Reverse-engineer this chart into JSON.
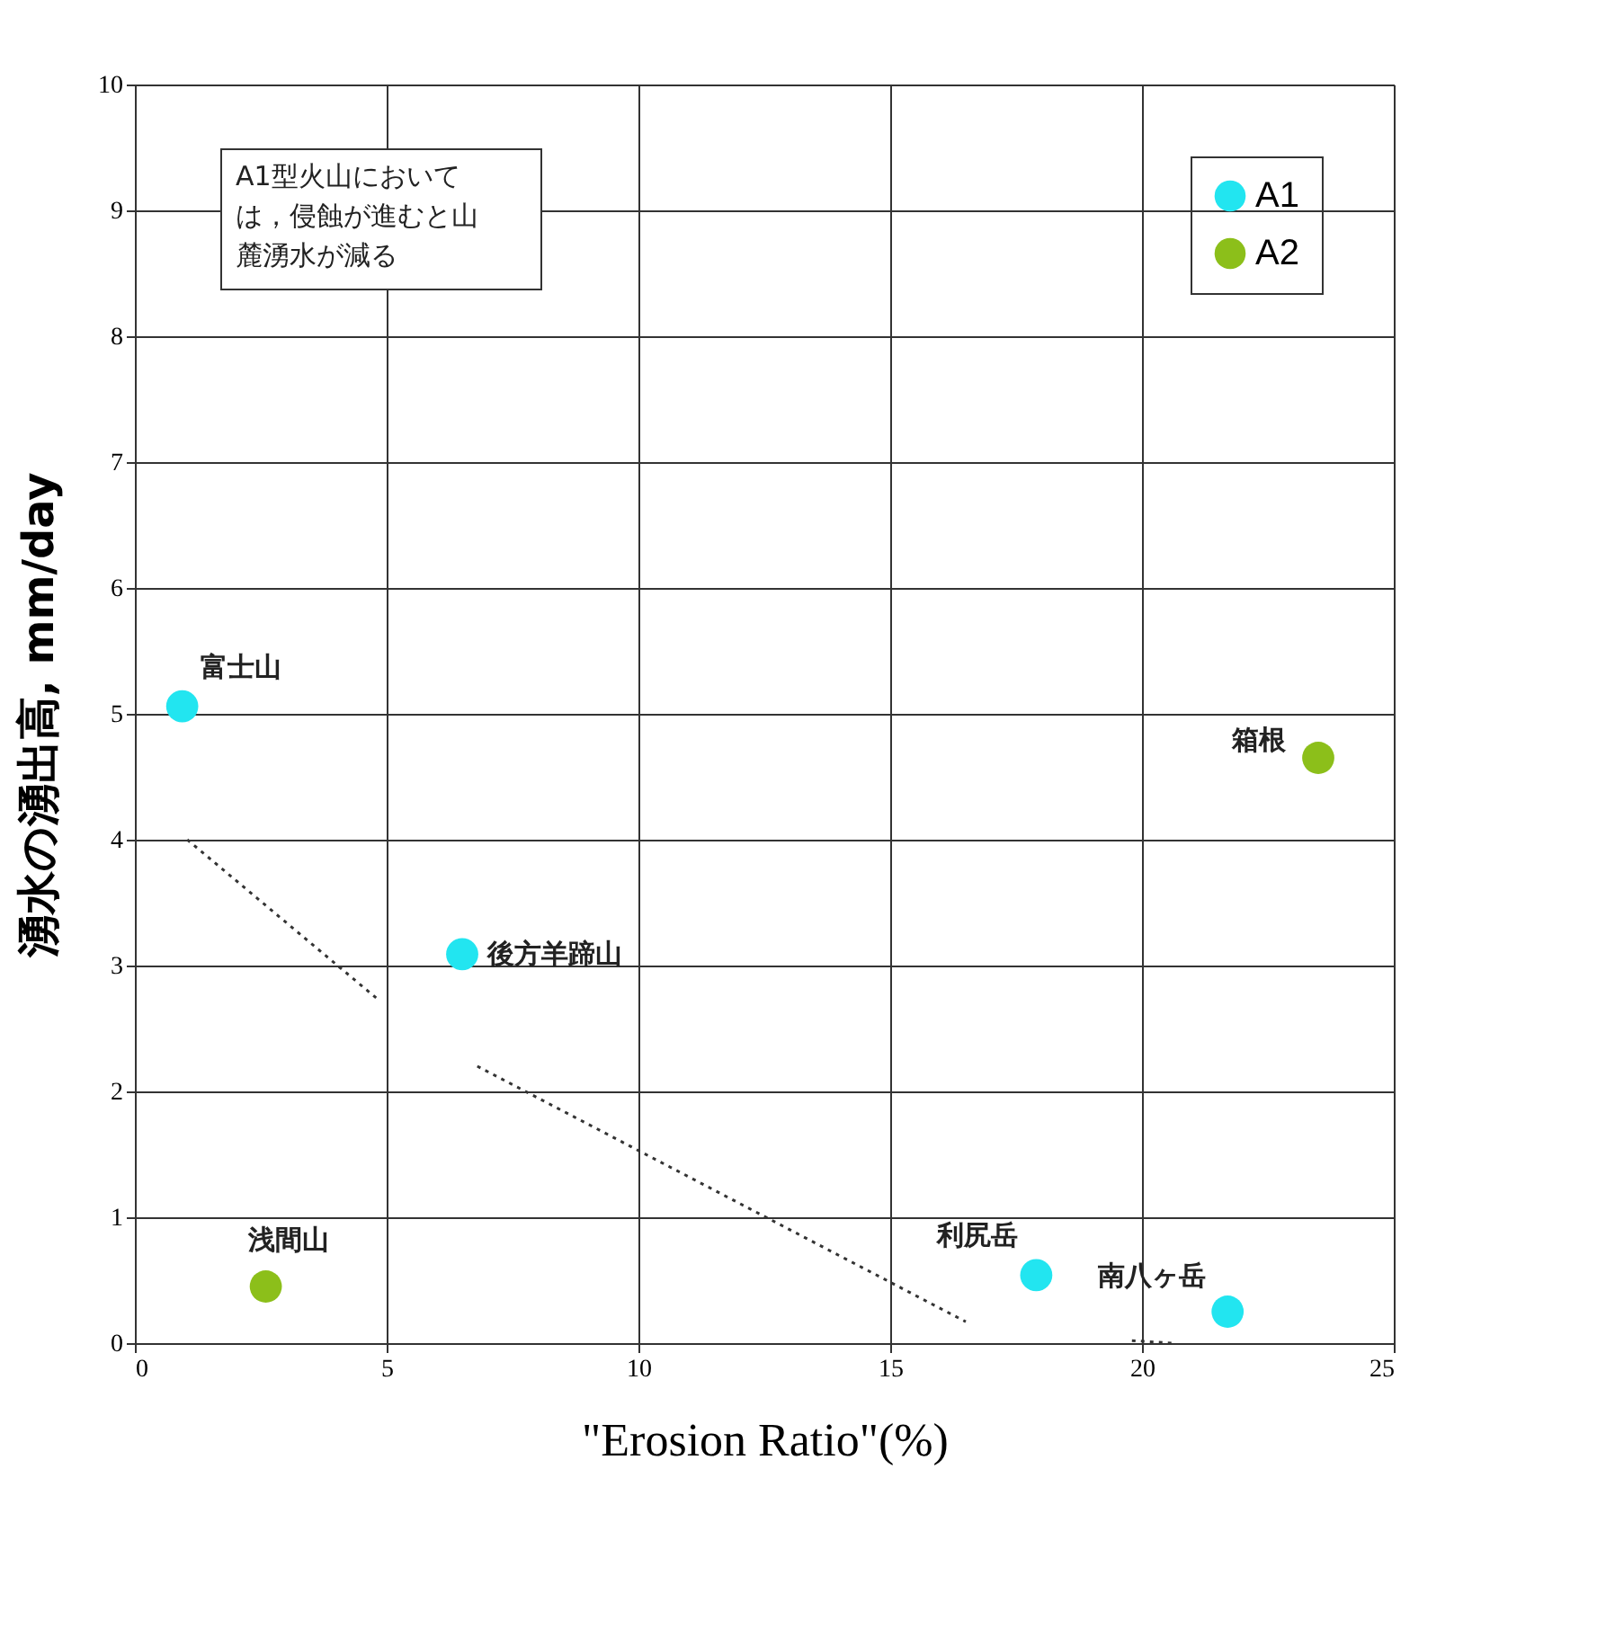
{
  "chart_data": {
    "type": "scatter",
    "xlabel": "\"Erosion Ratio\"(%)",
    "ylabel": "湧水の湧出高, mm/day",
    "xlim": [
      0,
      25
    ],
    "xticks": [
      0,
      5,
      10,
      15,
      20,
      25
    ],
    "ylim": [
      0,
      10
    ],
    "yticks": [
      0,
      1,
      2,
      3,
      4,
      5,
      6,
      7,
      8,
      9,
      10
    ],
    "grid": true,
    "legend": "top right",
    "series": [
      {
        "name": "A1",
        "color": "#22e5f0",
        "marker": "circle",
        "x": [
          0.94,
          6.5,
          17.9,
          21.7
        ],
        "values": [
          5.06,
          3.09,
          0.54,
          0.25
        ]
      },
      {
        "name": "A2",
        "color": "#8cbf1a",
        "marker": "circle",
        "x": [
          2.6,
          23.5
        ],
        "values": [
          0.45,
          4.65
        ]
      },
      {
        "type": "line",
        "color": "#333333",
        "line_style": "dotted",
        "marker": "none",
        "x": [
          1.04,
          4.8
        ],
        "values": [
          4.0,
          2.74
        ]
      },
      {
        "type": "line",
        "color": "#333333",
        "line_style": "dotted",
        "marker": "none",
        "x": [
          6.8,
          16.5
        ],
        "values": [
          2.2,
          0.17
        ]
      },
      {
        "type": "line",
        "color": "#333333",
        "line_style": "dotted",
        "marker": "none",
        "x": [
          19.8,
          20.6
        ],
        "values": [
          0.02,
          0.0
        ]
      }
    ],
    "annotations": [
      "A1型火山においては，侵蝕が進むと山麓湧水が減る",
      {
        "text": "富士山",
        "x": 0.94,
        "y": 5.06
      },
      {
        "text": "後方羊蹄山",
        "x": 6.5,
        "y": 3.09
      },
      {
        "text": "浅間山",
        "x": 2.6,
        "y": 0.45
      },
      {
        "text": "利尻岳",
        "x": 17.9,
        "y": 0.54
      },
      {
        "text": "南八ヶ岳",
        "x": 21.7,
        "y": 0.25
      },
      {
        "text": "箱根",
        "x": 23.5,
        "y": 4.65
      }
    ]
  }
}
